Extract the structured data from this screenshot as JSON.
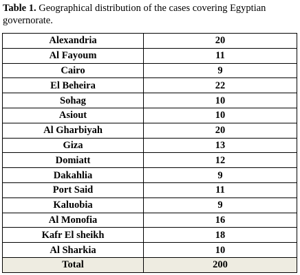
{
  "caption": {
    "label": "Table 1.",
    "text": " Geographical distribution of the cases covering Egyptian governorate."
  },
  "table": {
    "rows": [
      {
        "governorate": "Alexandria",
        "cases": "20"
      },
      {
        "governorate": "Al Fayoum",
        "cases": "11"
      },
      {
        "governorate": "Cairo",
        "cases": "9"
      },
      {
        "governorate": "El Beheira",
        "cases": "22"
      },
      {
        "governorate": "Sohag",
        "cases": "10"
      },
      {
        "governorate": "Asiout",
        "cases": "10"
      },
      {
        "governorate": "Al Gharbiyah",
        "cases": "20"
      },
      {
        "governorate": "Giza",
        "cases": "13"
      },
      {
        "governorate": "Domiatt",
        "cases": "12"
      },
      {
        "governorate": "Dakahlia",
        "cases": "9"
      },
      {
        "governorate": "Port Said",
        "cases": "11"
      },
      {
        "governorate": "Kaluobia",
        "cases": "9"
      },
      {
        "governorate": "Al Monofia",
        "cases": "16"
      },
      {
        "governorate": "Kafr El sheikh",
        "cases": "18"
      },
      {
        "governorate": "Al Sharkia",
        "cases": "10"
      }
    ],
    "total": {
      "label": "Total",
      "value": "200"
    }
  }
}
